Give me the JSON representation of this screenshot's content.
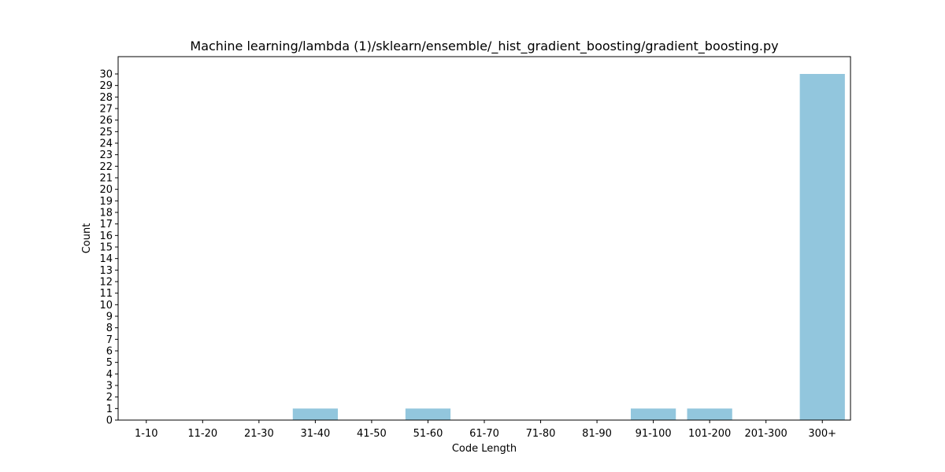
{
  "chart_data": {
    "type": "bar",
    "title": "Machine learning/lambda (1)/sklearn/ensemble/_hist_gradient_boosting/gradient_boosting.py",
    "xlabel": "Code Length",
    "ylabel": "Count",
    "categories": [
      "1-10",
      "11-20",
      "21-30",
      "31-40",
      "41-50",
      "51-60",
      "61-70",
      "71-80",
      "81-90",
      "91-100",
      "101-200",
      "201-300",
      "300+"
    ],
    "values": [
      0,
      0,
      0,
      1,
      0,
      1,
      0,
      0,
      0,
      1,
      1,
      0,
      30
    ],
    "ylim": [
      0,
      31.5
    ],
    "yticks": [
      0,
      1,
      2,
      3,
      4,
      5,
      6,
      7,
      8,
      9,
      10,
      11,
      12,
      13,
      14,
      15,
      16,
      17,
      18,
      19,
      20,
      21,
      22,
      23,
      24,
      25,
      26,
      27,
      28,
      29,
      30
    ],
    "bar_color": "#92c6dd",
    "grid": false,
    "legend": false
  }
}
